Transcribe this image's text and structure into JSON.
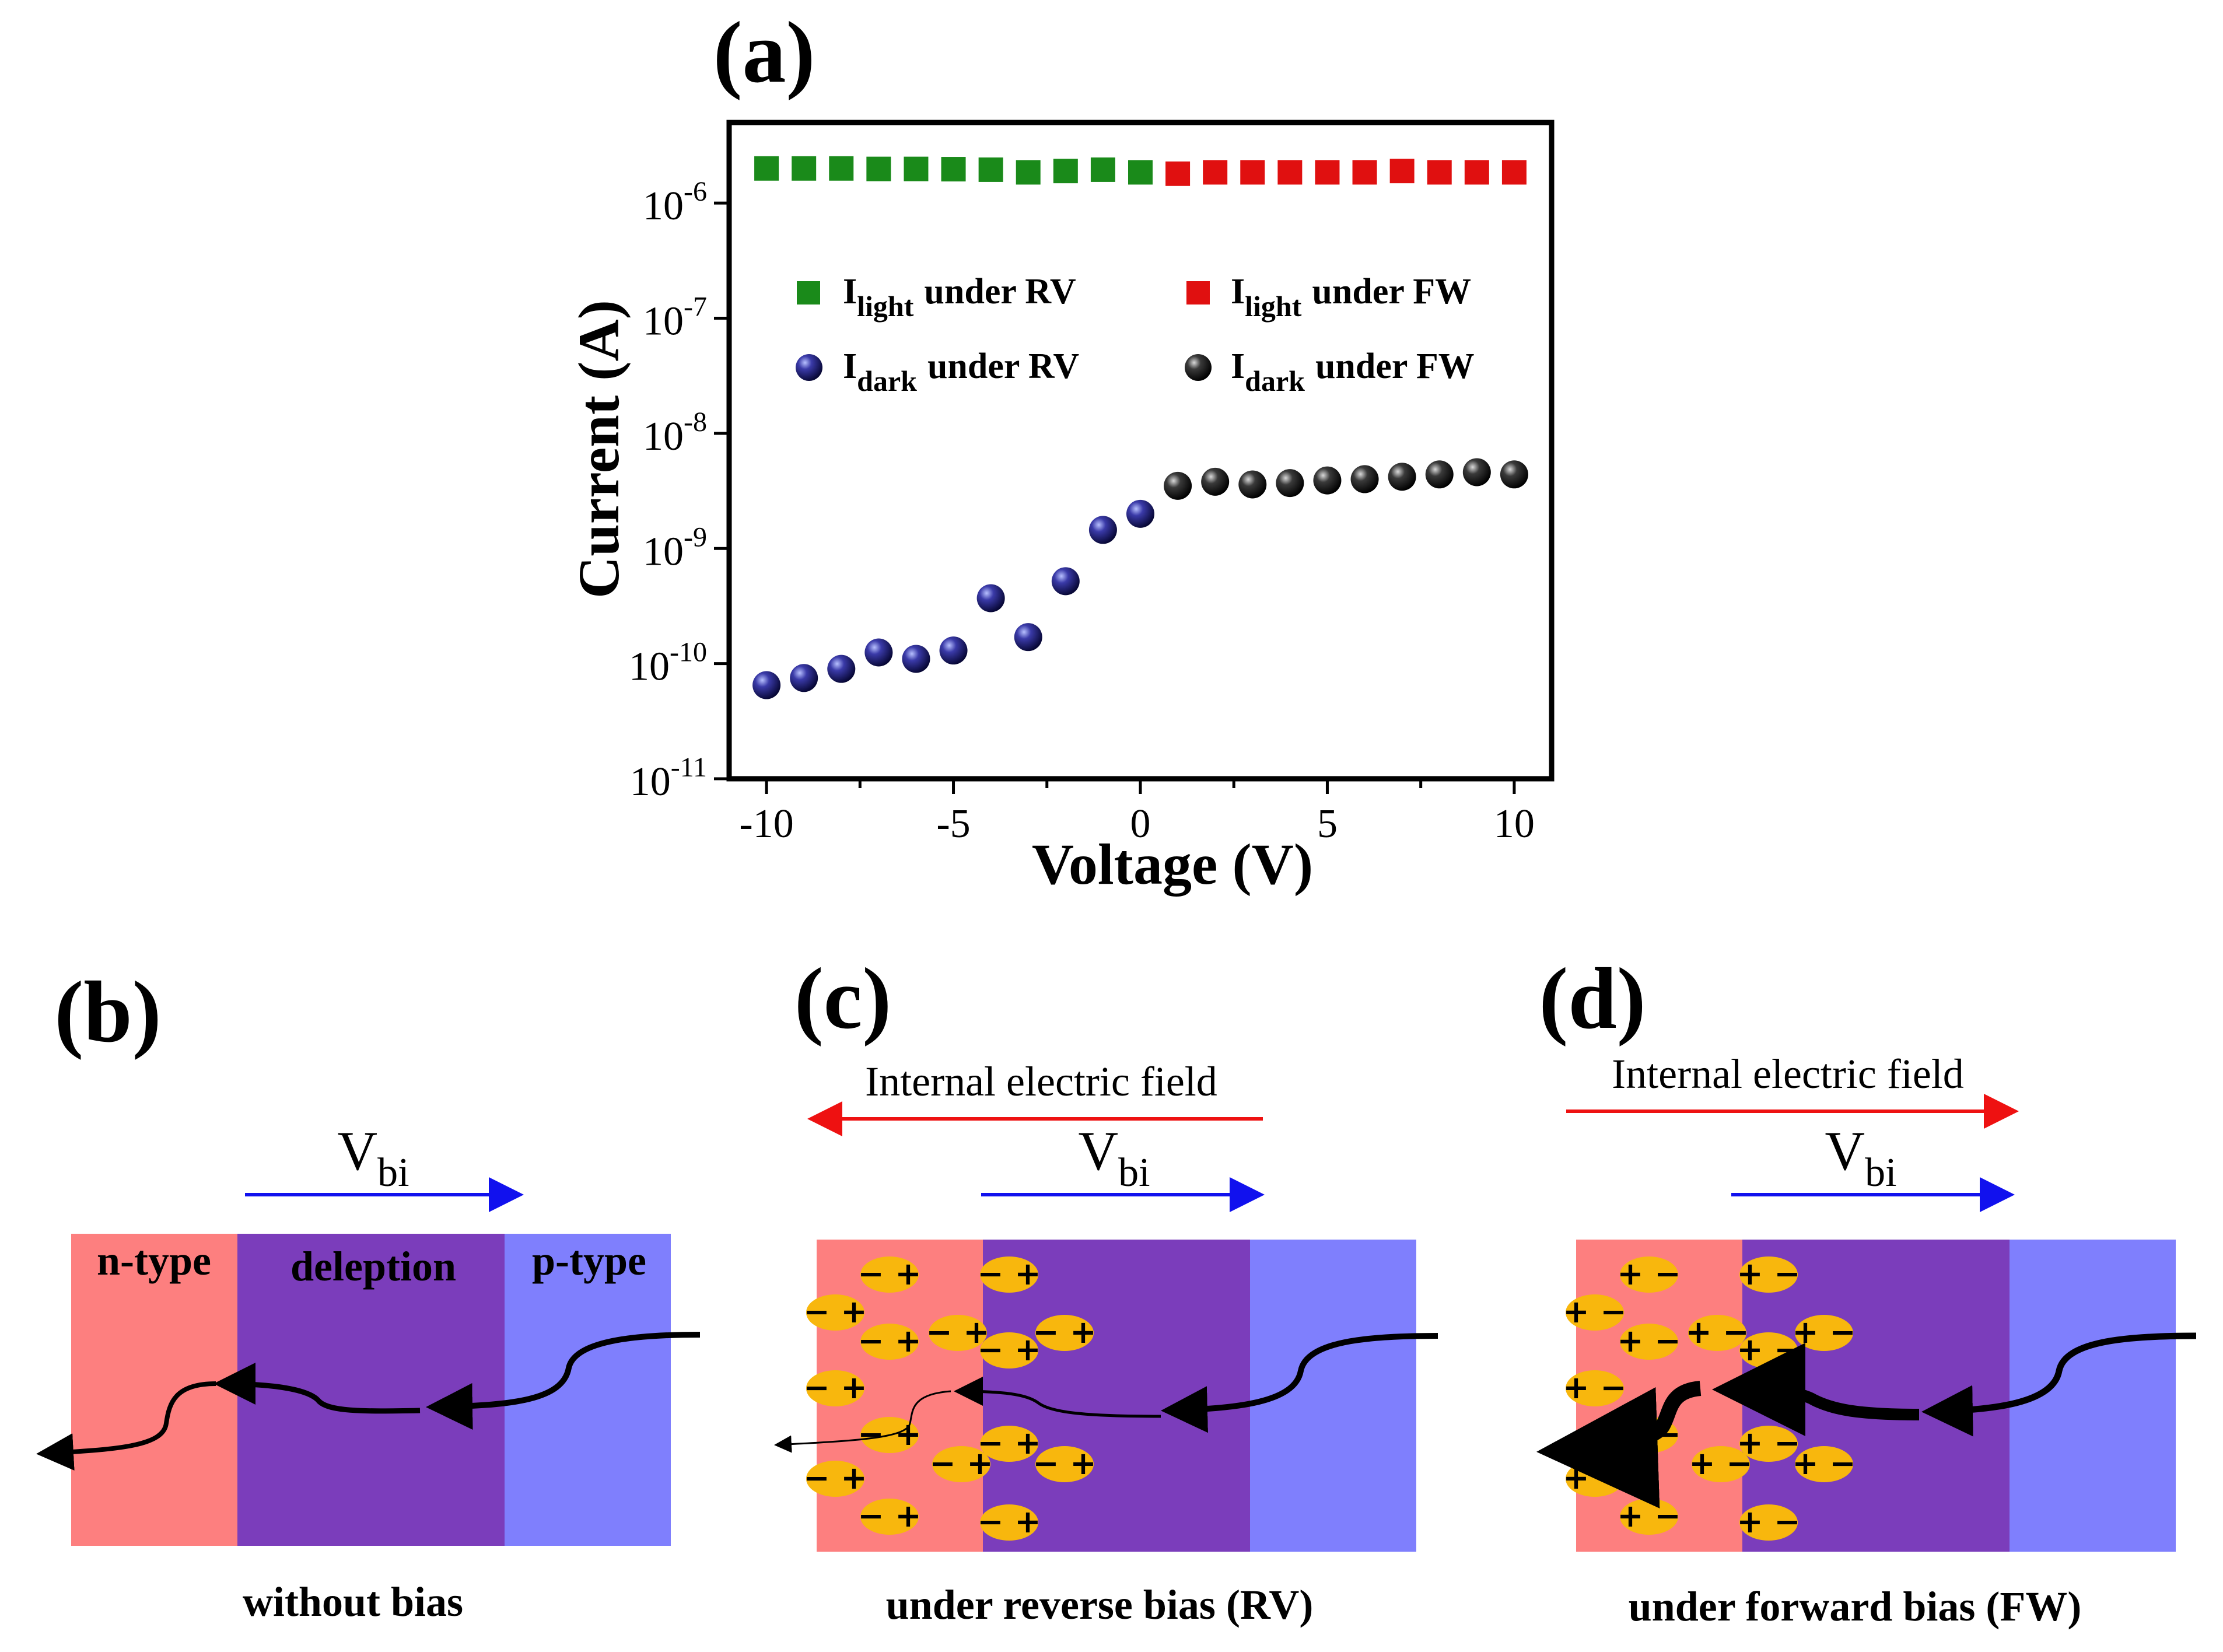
{
  "chart_data": {
    "type": "scatter",
    "panel_label": "(a)",
    "xlabel": "Voltage (V)",
    "ylabel": "Current (A)",
    "xlim": [
      -11,
      11
    ],
    "ylim_log10": [
      -11,
      -5.3
    ],
    "yscale": "log",
    "x_ticks": [
      -10,
      -5,
      0,
      5,
      10
    ],
    "x_tick_labels": [
      "-10",
      "-5",
      "0",
      "5",
      "10"
    ],
    "y_ticks": [
      {
        "base": "10",
        "exp": "-11",
        "value": -11
      },
      {
        "base": "10",
        "exp": "-10",
        "value": -10
      },
      {
        "base": "10",
        "exp": "-9",
        "value": -9
      },
      {
        "base": "10",
        "exp": "-8",
        "value": -8
      },
      {
        "base": "10",
        "exp": "-7",
        "value": -7
      },
      {
        "base": "10",
        "exp": "-6",
        "value": -6
      }
    ],
    "series": [
      {
        "key": "light_rv",
        "name": "I",
        "sub": "light",
        "suffix": "under RV",
        "marker": "square",
        "color": "#1a8a1a",
        "x": [
          -10,
          -9,
          -8,
          -7,
          -6,
          -5,
          -4,
          -3,
          -2,
          -1,
          0
        ],
        "y": [
          2e-06,
          2e-06,
          2e-06,
          1.98e-06,
          1.98e-06,
          1.97e-06,
          1.95e-06,
          1.85e-06,
          1.9e-06,
          1.95e-06,
          1.85e-06
        ]
      },
      {
        "key": "dark_rv",
        "name": "I",
        "sub": "dark",
        "suffix": "under RV",
        "marker": "sphere",
        "color": "#1a1a8c",
        "x": [
          -10,
          -9,
          -8,
          -7,
          -6,
          -5,
          -4,
          -3,
          -2,
          -1,
          0
        ],
        "y": [
          6.5e-11,
          7.5e-11,
          9e-11,
          1.25e-10,
          1.1e-10,
          1.3e-10,
          3.7e-10,
          1.7e-10,
          5.2e-10,
          1.45e-09,
          2e-09
        ]
      },
      {
        "key": "light_fw",
        "name": "I",
        "sub": "light",
        "suffix": "under FW",
        "marker": "square",
        "color": "#e01010",
        "x": [
          1,
          2,
          3,
          4,
          5,
          6,
          7,
          8,
          9,
          10
        ],
        "y": [
          1.8e-06,
          1.85e-06,
          1.85e-06,
          1.85e-06,
          1.85e-06,
          1.85e-06,
          1.9e-06,
          1.85e-06,
          1.85e-06,
          1.85e-06
        ]
      },
      {
        "key": "dark_fw",
        "name": "I",
        "sub": "dark",
        "suffix": "under FW",
        "marker": "sphere",
        "color": "#111111",
        "x": [
          1,
          2,
          3,
          4,
          5,
          6,
          7,
          8,
          9,
          10
        ],
        "y": [
          3.5e-09,
          3.8e-09,
          3.6e-09,
          3.7e-09,
          3.9e-09,
          4e-09,
          4.2e-09,
          4.4e-09,
          4.6e-09,
          4.4e-09
        ]
      }
    ]
  },
  "panel_b": {
    "label": "(b)",
    "vbi_base": "V",
    "vbi_sub": "bi",
    "n_label": "n-type",
    "depletion_label": "deleption",
    "p_label": "p-type",
    "caption": "without bias"
  },
  "panel_c": {
    "label": "(c)",
    "field_label": "Internal electric field",
    "vbi_base": "V",
    "vbi_sub": "bi",
    "dipole_text": "− +",
    "caption": "under reverse bias (RV)"
  },
  "panel_d": {
    "label": "(d)",
    "field_label": "Internal electric field",
    "vbi_base": "V",
    "vbi_sub": "bi",
    "dipole_text": "+ −",
    "caption": "under forward bias (FW)"
  },
  "colors": {
    "n_region": "#fd7f7f",
    "depletion": "#7b3dbb",
    "p_region": "#7f7ffd",
    "dipole": "#f8b70d",
    "field_arrow": "#ee1111",
    "vbi_arrow": "#1111ee"
  }
}
